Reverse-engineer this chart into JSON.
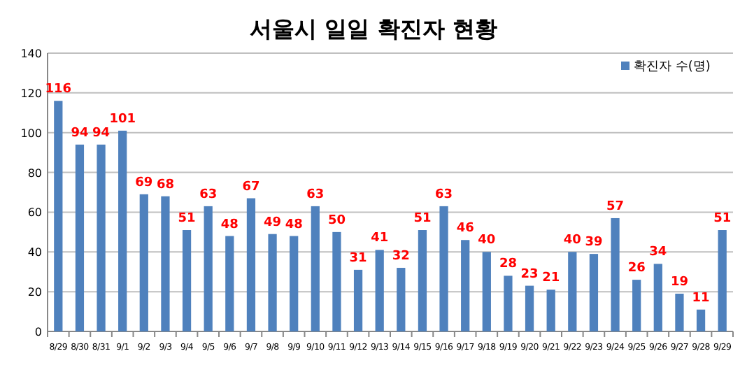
{
  "chart_data": {
    "type": "bar",
    "title": "서울시 일일 확진자 현황",
    "categories": [
      "8/29",
      "8/30",
      "8/31",
      "9/1",
      "9/2",
      "9/3",
      "9/4",
      "9/5",
      "9/6",
      "9/7",
      "9/8",
      "9/9",
      "9/10",
      "9/11",
      "9/12",
      "9/13",
      "9/14",
      "9/15",
      "9/16",
      "9/17",
      "9/18",
      "9/19",
      "9/20",
      "9/21",
      "9/22",
      "9/23",
      "9/24",
      "9/25",
      "9/26",
      "9/27",
      "9/28",
      "9/29"
    ],
    "series": [
      {
        "name": "확진자 수(명)",
        "color": "#4f81bd",
        "values": [
          116,
          94,
          94,
          101,
          69,
          68,
          51,
          63,
          48,
          67,
          49,
          48,
          63,
          50,
          31,
          41,
          32,
          51,
          63,
          46,
          40,
          28,
          23,
          21,
          40,
          39,
          57,
          26,
          34,
          19,
          11,
          51
        ]
      }
    ],
    "ylim": [
      0,
      140
    ],
    "yticks": [
      0,
      20,
      40,
      60,
      80,
      100,
      120,
      140
    ],
    "grid": "y",
    "legend": "top right",
    "data_labels": true
  }
}
